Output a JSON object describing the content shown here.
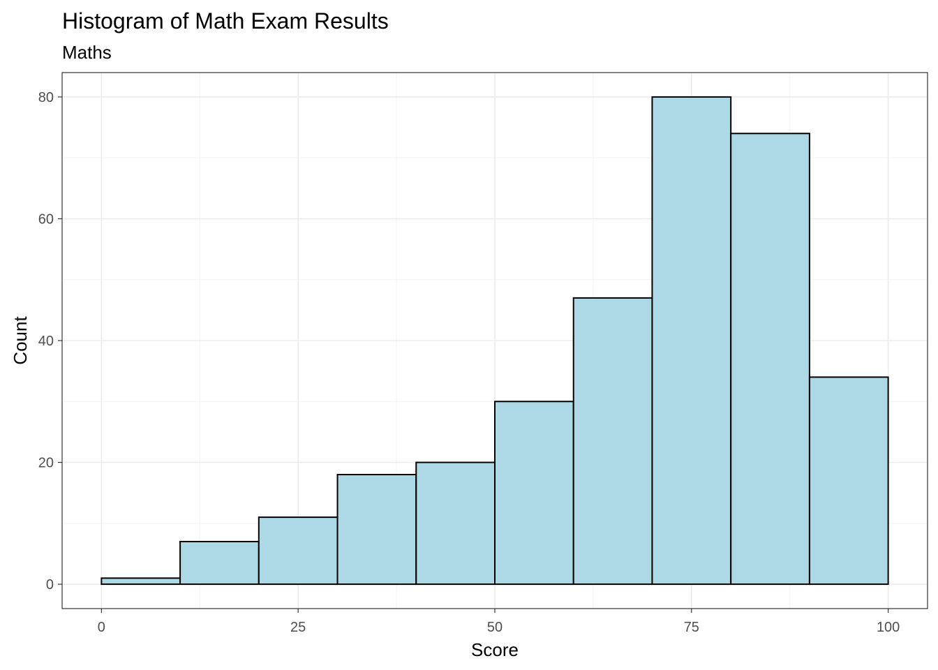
{
  "chart_data": {
    "type": "bar",
    "title": "Histogram of Math Exam Results",
    "subtitle": "Maths",
    "xlabel": "Score",
    "ylabel": "Count",
    "bins": [
      {
        "start": 0,
        "end": 10,
        "count": 1
      },
      {
        "start": 10,
        "end": 20,
        "count": 7
      },
      {
        "start": 20,
        "end": 30,
        "count": 11
      },
      {
        "start": 30,
        "end": 40,
        "count": 18
      },
      {
        "start": 40,
        "end": 50,
        "count": 20
      },
      {
        "start": 50,
        "end": 60,
        "count": 30
      },
      {
        "start": 60,
        "end": 70,
        "count": 47
      },
      {
        "start": 70,
        "end": 80,
        "count": 80
      },
      {
        "start": 80,
        "end": 90,
        "count": 74
      },
      {
        "start": 90,
        "end": 100,
        "count": 34
      }
    ],
    "xlim": [
      -5,
      105
    ],
    "ylim": [
      -4,
      84
    ],
    "x_ticks": [
      0,
      25,
      50,
      75,
      100
    ],
    "y_ticks": [
      0,
      20,
      40,
      60,
      80
    ],
    "x_ticks_labels": [
      "0",
      "25",
      "50",
      "75",
      "100"
    ],
    "y_ticks_labels": [
      "0",
      "20",
      "40",
      "60",
      "80"
    ],
    "grid": true,
    "legend": "none",
    "colors": {
      "bar_fill": "#add8e6",
      "bar_stroke": "#000000",
      "grid_major": "#ebebeb",
      "grid_minor": "#f3f3f3",
      "panel_border": "#333333",
      "tick_text": "#4d4d4d"
    }
  }
}
